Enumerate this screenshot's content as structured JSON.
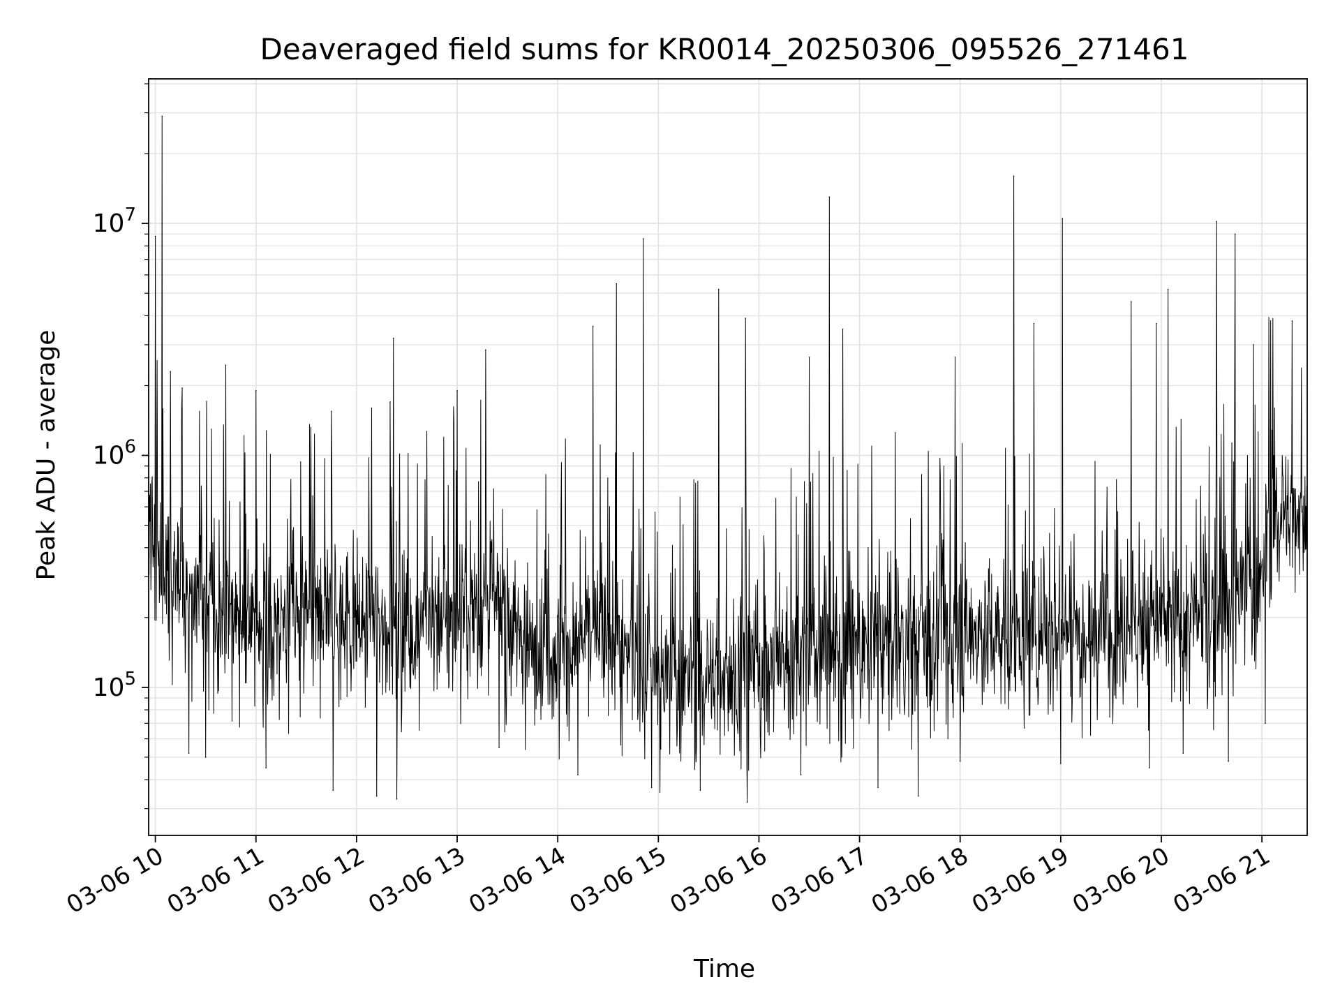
{
  "chart_data": {
    "type": "line",
    "title": "Deaveraged field sums for KR0014_20250306_095526_271461",
    "xlabel": "Time",
    "ylabel": "Peak ADU - average",
    "yscale": "log",
    "ylim": [
      23000,
      42000000
    ],
    "xlim": [
      "03-06 09:56",
      "03-06 21:27"
    ],
    "grid": true,
    "grid_minor": true,
    "x_ticks": [
      {
        "time": "03-06 10:00",
        "label": "03-06 10"
      },
      {
        "time": "03-06 11:00",
        "label": "03-06 11"
      },
      {
        "time": "03-06 12:00",
        "label": "03-06 12"
      },
      {
        "time": "03-06 13:00",
        "label": "03-06 13"
      },
      {
        "time": "03-06 14:00",
        "label": "03-06 14"
      },
      {
        "time": "03-06 15:00",
        "label": "03-06 15"
      },
      {
        "time": "03-06 16:00",
        "label": "03-06 16"
      },
      {
        "time": "03-06 17:00",
        "label": "03-06 17"
      },
      {
        "time": "03-06 18:00",
        "label": "03-06 18"
      },
      {
        "time": "03-06 19:00",
        "label": "03-06 19"
      },
      {
        "time": "03-06 20:00",
        "label": "03-06 20"
      },
      {
        "time": "03-06 21:00",
        "label": "03-06 21"
      }
    ],
    "y_ticks": [
      {
        "value": 100000,
        "base": "10",
        "exp": "5"
      },
      {
        "value": 1000000,
        "base": "10",
        "exp": "6"
      },
      {
        "value": 10000000,
        "base": "10",
        "exp": "7"
      }
    ],
    "line_color": "#000000",
    "baseline": [
      {
        "x": "03-06 09:56",
        "y": 450000
      },
      {
        "x": "03-06 10:08",
        "y": 300000
      },
      {
        "x": "03-06 10:30",
        "y": 250000
      },
      {
        "x": "03-06 11:00",
        "y": 190000
      },
      {
        "x": "03-06 11:30",
        "y": 200000
      },
      {
        "x": "03-06 12:00",
        "y": 190000
      },
      {
        "x": "03-06 12:30",
        "y": 190000
      },
      {
        "x": "03-06 13:00",
        "y": 210000
      },
      {
        "x": "03-06 13:20",
        "y": 240000
      },
      {
        "x": "03-06 13:40",
        "y": 160000
      },
      {
        "x": "03-06 14:00",
        "y": 150000
      },
      {
        "x": "03-06 14:30",
        "y": 170000
      },
      {
        "x": "03-06 15:00",
        "y": 110000
      },
      {
        "x": "03-06 15:30",
        "y": 110000
      },
      {
        "x": "03-06 16:00",
        "y": 130000
      },
      {
        "x": "03-06 16:30",
        "y": 140000
      },
      {
        "x": "03-06 17:00",
        "y": 155000
      },
      {
        "x": "03-06 17:30",
        "y": 170000
      },
      {
        "x": "03-06 18:00",
        "y": 170000
      },
      {
        "x": "03-06 18:30",
        "y": 170000
      },
      {
        "x": "03-06 19:00",
        "y": 180000
      },
      {
        "x": "03-06 19:30",
        "y": 190000
      },
      {
        "x": "03-06 20:00",
        "y": 190000
      },
      {
        "x": "03-06 20:30",
        "y": 200000
      },
      {
        "x": "03-06 20:45",
        "y": 260000
      },
      {
        "x": "03-06 21:00",
        "y": 280000
      },
      {
        "x": "03-06 21:04",
        "y": 550000
      },
      {
        "x": "03-06 21:27",
        "y": 580000
      }
    ],
    "spikes": [
      {
        "x": "03-06 10:00",
        "y": 8800000
      },
      {
        "x": "03-06 10:04",
        "y": 29000000
      },
      {
        "x": "03-06 10:09",
        "y": 2300000
      },
      {
        "x": "03-06 10:16",
        "y": 1950000
      },
      {
        "x": "03-06 10:42",
        "y": 2450000
      },
      {
        "x": "03-06 11:00",
        "y": 1900000
      },
      {
        "x": "03-06 11:45",
        "y": 1550000
      },
      {
        "x": "03-06 12:09",
        "y": 1600000
      },
      {
        "x": "03-06 12:20",
        "y": 1700000
      },
      {
        "x": "03-06 12:22",
        "y": 3200000
      },
      {
        "x": "03-06 13:00",
        "y": 1900000
      },
      {
        "x": "03-06 13:17",
        "y": 2850000
      },
      {
        "x": "03-06 14:21",
        "y": 3600000
      },
      {
        "x": "03-06 14:35",
        "y": 5500000
      },
      {
        "x": "03-06 14:51",
        "y": 8600000
      },
      {
        "x": "03-06 15:36",
        "y": 5200000
      },
      {
        "x": "03-06 15:52",
        "y": 3900000
      },
      {
        "x": "03-06 16:30",
        "y": 2650000
      },
      {
        "x": "03-06 16:42",
        "y": 13000000
      },
      {
        "x": "03-06 16:50",
        "y": 3500000
      },
      {
        "x": "03-06 17:57",
        "y": 2650000
      },
      {
        "x": "03-06 18:32",
        "y": 16000000
      },
      {
        "x": "03-06 18:44",
        "y": 3700000
      },
      {
        "x": "03-06 19:01",
        "y": 10500000
      },
      {
        "x": "03-06 19:42",
        "y": 4600000
      },
      {
        "x": "03-06 19:57",
        "y": 3700000
      },
      {
        "x": "03-06 20:04",
        "y": 5200000
      },
      {
        "x": "03-06 20:33",
        "y": 10200000
      },
      {
        "x": "03-06 20:44",
        "y": 9000000
      },
      {
        "x": "03-06 20:55",
        "y": 3000000
      },
      {
        "x": "03-06 21:18",
        "y": 3800000
      }
    ],
    "dips": [
      {
        "x": "03-06 10:20",
        "y": 52000
      },
      {
        "x": "03-06 10:30",
        "y": 50000
      },
      {
        "x": "03-06 11:06",
        "y": 45000
      },
      {
        "x": "03-06 11:46",
        "y": 36000
      },
      {
        "x": "03-06 12:12",
        "y": 34000
      },
      {
        "x": "03-06 12:24",
        "y": 33000
      },
      {
        "x": "03-06 13:25",
        "y": 55000
      },
      {
        "x": "03-06 14:12",
        "y": 42000
      },
      {
        "x": "03-06 14:56",
        "y": 37000
      },
      {
        "x": "03-06 15:25",
        "y": 36000
      },
      {
        "x": "03-06 15:53",
        "y": 32000
      },
      {
        "x": "03-06 16:25",
        "y": 42000
      },
      {
        "x": "03-06 17:11",
        "y": 37000
      },
      {
        "x": "03-06 17:35",
        "y": 34000
      },
      {
        "x": "03-06 18:00",
        "y": 48000
      },
      {
        "x": "03-06 19:00",
        "y": 47000
      },
      {
        "x": "03-06 19:53",
        "y": 45000
      },
      {
        "x": "03-06 20:13",
        "y": 52000
      },
      {
        "x": "03-06 20:40",
        "y": 48000
      },
      {
        "x": "03-06 21:02",
        "y": 70000
      }
    ]
  }
}
